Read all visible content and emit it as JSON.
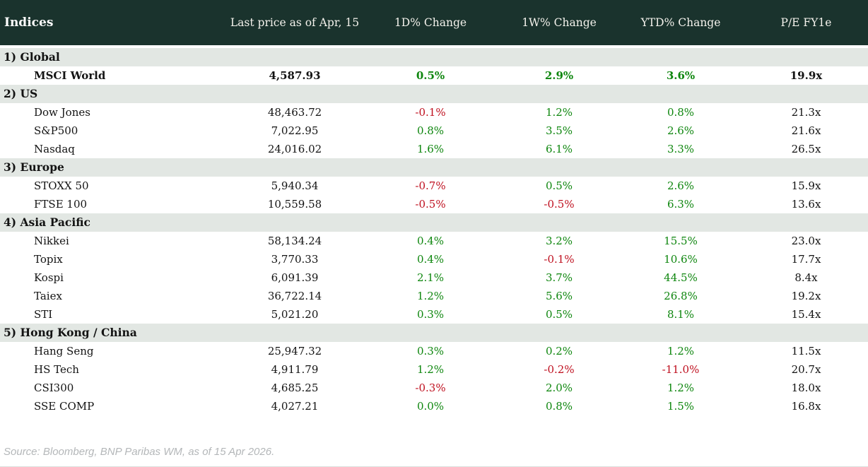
{
  "colors": {
    "header_bg": "#1a332d",
    "header_text": "#f4f2ec",
    "section_bg": "#e2e7e3",
    "row_bg": "#ffffff",
    "text": "#131313",
    "positive": "#0e860e",
    "negative": "#bf101f",
    "footer_text": "#b4b7b9"
  },
  "footer": {
    "source": "Source: Bloomberg, BNP Paribas WM, as of 15 Apr 2026."
  },
  "chart_data": {
    "type": "table",
    "title": "Indices",
    "columns": [
      "Last price as of Apr, 15",
      "1D% Change",
      "1W% Change",
      "YTD% Change",
      "P/E FY1e"
    ],
    "sections": [
      {
        "label": "1) Global",
        "rows": [
          {
            "name": "MSCI World",
            "price": "4,587.93",
            "d1": "0.5%",
            "w1": "2.9%",
            "ytd": "3.6%",
            "pe": "19.9x",
            "bold": true
          }
        ]
      },
      {
        "label": "2) US",
        "rows": [
          {
            "name": "Dow Jones",
            "price": "48,463.72",
            "d1": "-0.1%",
            "w1": "1.2%",
            "ytd": "0.8%",
            "pe": "21.3x",
            "bold": false
          },
          {
            "name": "S&P500",
            "price": "7,022.95",
            "d1": "0.8%",
            "w1": "3.5%",
            "ytd": "2.6%",
            "pe": "21.6x",
            "bold": false
          },
          {
            "name": "Nasdaq",
            "price": "24,016.02",
            "d1": "1.6%",
            "w1": "6.1%",
            "ytd": "3.3%",
            "pe": "26.5x",
            "bold": false
          }
        ]
      },
      {
        "label": "3) Europe",
        "rows": [
          {
            "name": "STOXX 50",
            "price": "5,940.34",
            "d1": "-0.7%",
            "w1": "0.5%",
            "ytd": "2.6%",
            "pe": "15.9x",
            "bold": false
          },
          {
            "name": "FTSE 100",
            "price": "10,559.58",
            "d1": "-0.5%",
            "w1": "-0.5%",
            "ytd": "6.3%",
            "pe": "13.6x",
            "bold": false
          }
        ]
      },
      {
        "label": "4) Asia Pacific",
        "rows": [
          {
            "name": "Nikkei",
            "price": "58,134.24",
            "d1": "0.4%",
            "w1": "3.2%",
            "ytd": "15.5%",
            "pe": "23.0x",
            "bold": false
          },
          {
            "name": "Topix",
            "price": "3,770.33",
            "d1": "0.4%",
            "w1": "-0.1%",
            "ytd": "10.6%",
            "pe": "17.7x",
            "bold": false
          },
          {
            "name": "Kospi",
            "price": "6,091.39",
            "d1": "2.1%",
            "w1": "3.7%",
            "ytd": "44.5%",
            "pe": "8.4x",
            "bold": false
          },
          {
            "name": "Taiex",
            "price": "36,722.14",
            "d1": "1.2%",
            "w1": "5.6%",
            "ytd": "26.8%",
            "pe": "19.2x",
            "bold": false
          },
          {
            "name": "STI",
            "price": "5,021.20",
            "d1": "0.3%",
            "w1": "0.5%",
            "ytd": "8.1%",
            "pe": "15.4x",
            "bold": false
          }
        ]
      },
      {
        "label": "5) Hong Kong / China",
        "rows": [
          {
            "name": "Hang Seng",
            "price": "25,947.32",
            "d1": "0.3%",
            "w1": "0.2%",
            "ytd": "1.2%",
            "pe": "11.5x",
            "bold": false
          },
          {
            "name": "HS Tech",
            "price": "4,911.79",
            "d1": "1.2%",
            "w1": "-0.2%",
            "ytd": "-11.0%",
            "pe": "20.7x",
            "bold": false
          },
          {
            "name": "CSI300",
            "price": "4,685.25",
            "d1": "-0.3%",
            "w1": "2.0%",
            "ytd": "1.2%",
            "pe": "18.0x",
            "bold": false
          },
          {
            "name": "SSE COMP",
            "price": "4,027.21",
            "d1": "0.0%",
            "w1": "0.8%",
            "ytd": "1.5%",
            "pe": "16.8x",
            "bold": false
          }
        ]
      }
    ]
  }
}
